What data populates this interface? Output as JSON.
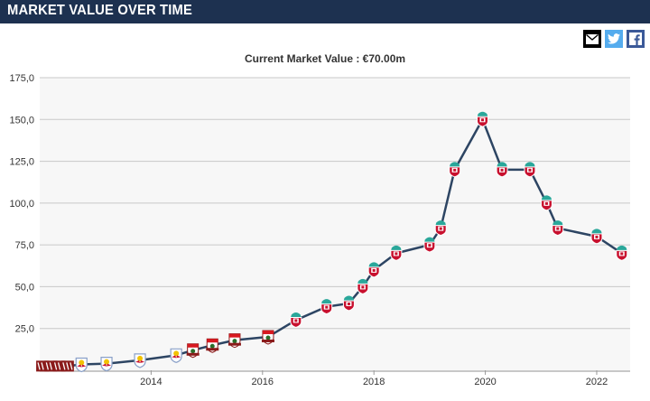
{
  "header": {
    "title": "MARKET VALUE OVER TIME"
  },
  "share": {
    "mail_icon": "envelope-icon",
    "twitter_icon": "twitter-bird-icon",
    "facebook_icon": "facebook-f-icon"
  },
  "chart_data": {
    "type": "line",
    "title": "",
    "subtitle": "Current Market Value : €70.00m",
    "xlabel": "",
    "ylabel": "",
    "ylim": [
      0,
      175
    ],
    "xlim": [
      2012.0,
      2022.6
    ],
    "yticks": [
      "25,0",
      "50,0",
      "75,0",
      "100,0",
      "125,0",
      "150,0",
      "175,0"
    ],
    "xticks": [
      "2014",
      "2016",
      "2018",
      "2020",
      "2022"
    ],
    "grid": true,
    "legend": "none",
    "line_color": "#2d4563",
    "points": [
      {
        "x": 2012.05,
        "y": 2.5,
        "club": "sion"
      },
      {
        "x": 2012.2,
        "y": 2.5,
        "club": "sion"
      },
      {
        "x": 2012.35,
        "y": 2.5,
        "club": "sion"
      },
      {
        "x": 2012.5,
        "y": 2.5,
        "club": "sion"
      },
      {
        "x": 2012.75,
        "y": 3.5,
        "club": "red-bull-salzburg"
      },
      {
        "x": 2013.2,
        "y": 4,
        "club": "red-bull-salzburg"
      },
      {
        "x": 2013.8,
        "y": 6,
        "club": "red-bull-salzburg"
      },
      {
        "x": 2014.45,
        "y": 9,
        "club": "red-bull-salzburg"
      },
      {
        "x": 2014.75,
        "y": 12,
        "club": "southampton"
      },
      {
        "x": 2015.1,
        "y": 15,
        "club": "southampton"
      },
      {
        "x": 2015.5,
        "y": 18,
        "club": "southampton"
      },
      {
        "x": 2016.1,
        "y": 20,
        "club": "southampton"
      },
      {
        "x": 2016.6,
        "y": 30,
        "club": "liverpool"
      },
      {
        "x": 2017.15,
        "y": 38,
        "club": "liverpool"
      },
      {
        "x": 2017.55,
        "y": 40,
        "club": "liverpool"
      },
      {
        "x": 2017.8,
        "y": 50,
        "club": "liverpool"
      },
      {
        "x": 2018.0,
        "y": 60,
        "club": "liverpool"
      },
      {
        "x": 2018.4,
        "y": 70,
        "club": "liverpool"
      },
      {
        "x": 2019.0,
        "y": 75,
        "club": "liverpool"
      },
      {
        "x": 2019.2,
        "y": 85,
        "club": "liverpool"
      },
      {
        "x": 2019.45,
        "y": 120,
        "club": "liverpool"
      },
      {
        "x": 2019.95,
        "y": 150,
        "club": "liverpool"
      },
      {
        "x": 2020.3,
        "y": 120,
        "club": "liverpool"
      },
      {
        "x": 2020.8,
        "y": 120,
        "club": "liverpool"
      },
      {
        "x": 2021.1,
        "y": 100,
        "club": "liverpool"
      },
      {
        "x": 2021.3,
        "y": 85,
        "club": "liverpool"
      },
      {
        "x": 2022.0,
        "y": 80,
        "club": "liverpool"
      },
      {
        "x": 2022.45,
        "y": 70,
        "club": "liverpool"
      }
    ]
  }
}
